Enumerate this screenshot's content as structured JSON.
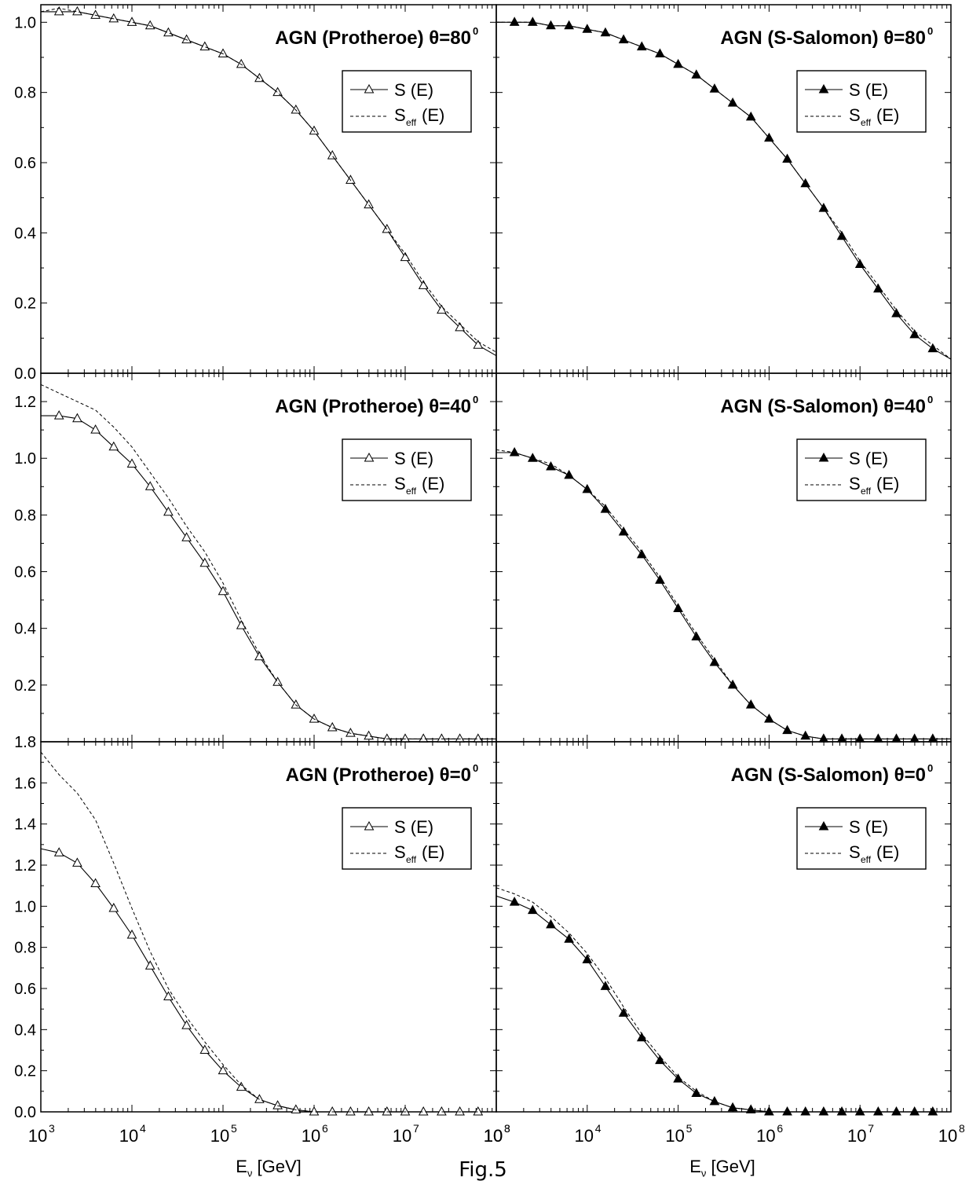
{
  "figure": {
    "caption": "Fig.5",
    "x_axis": {
      "label_main": "E",
      "label_sub": "ν",
      "label_unit": "[GeV]",
      "tick_labels": [
        "10",
        "10",
        "10",
        "10",
        "10",
        "10"
      ],
      "tick_exponents": [
        "3",
        "4",
        "5",
        "6",
        "7",
        "8"
      ],
      "scale": "log",
      "range": [
        1000,
        100000000
      ]
    },
    "legend": {
      "s_label": "S (E)",
      "seff_label_main": "S",
      "seff_label_sub": "eff",
      "seff_label_tail": "(E)"
    }
  },
  "chart_data": [
    {
      "type": "line",
      "id": "top-left",
      "title": "AGN (Protheroe)  θ=80",
      "title_sup": "0",
      "marker": "open-triangle",
      "xscale": "log",
      "xlim": [
        1000,
        100000000
      ],
      "ylim": [
        0.0,
        1.05
      ],
      "y_ticks": [
        0.0,
        0.2,
        0.4,
        0.6,
        0.8,
        1.0
      ],
      "y_tick_labels": [
        "0.0",
        "0.2",
        "0.4",
        "0.6",
        "0.8",
        "1.0"
      ],
      "legend_position": "top-right",
      "series": [
        {
          "name": "S (E)",
          "style": "solid-markers",
          "x": [
            1000,
            1585,
            2512,
            3981,
            6310,
            10000,
            15850,
            25120,
            39810,
            63100,
            100000,
            158500,
            251200,
            398100,
            631000,
            1000000,
            1585000,
            2512000,
            3981000,
            6310000,
            10000000,
            15850000,
            25120000,
            39810000,
            63100000,
            100000000
          ],
          "y": [
            1.03,
            1.03,
            1.03,
            1.02,
            1.01,
            1.0,
            0.99,
            0.97,
            0.95,
            0.93,
            0.91,
            0.88,
            0.84,
            0.8,
            0.75,
            0.69,
            0.62,
            0.55,
            0.48,
            0.41,
            0.33,
            0.25,
            0.18,
            0.13,
            0.08,
            0.05
          ]
        },
        {
          "name": "Seff(E)",
          "style": "dashed",
          "x": [
            1000,
            1585,
            2512,
            3981,
            6310,
            10000,
            15850,
            25120,
            39810,
            63100,
            100000,
            158500,
            251200,
            398100,
            631000,
            1000000,
            1585000,
            2512000,
            3981000,
            6310000,
            10000000,
            15850000,
            25120000,
            39810000,
            63100000,
            100000000
          ],
          "y": [
            1.03,
            1.04,
            1.03,
            1.02,
            1.01,
            1.0,
            0.99,
            0.97,
            0.95,
            0.93,
            0.91,
            0.88,
            0.84,
            0.8,
            0.75,
            0.69,
            0.62,
            0.55,
            0.48,
            0.41,
            0.34,
            0.26,
            0.19,
            0.14,
            0.09,
            0.06
          ]
        }
      ]
    },
    {
      "type": "line",
      "id": "top-right",
      "title": "AGN (S-Salomon)  θ=80",
      "title_sup": "0",
      "marker": "filled-triangle",
      "xscale": "log",
      "xlim": [
        1000,
        100000000
      ],
      "ylim": [
        0.0,
        1.05
      ],
      "y_ticks": [
        0.0,
        0.2,
        0.4,
        0.6,
        0.8,
        1.0
      ],
      "y_tick_labels": [],
      "legend_position": "top-right",
      "series": [
        {
          "name": "S (E)",
          "style": "solid-markers",
          "x": [
            1000,
            1585,
            2512,
            3981,
            6310,
            10000,
            15850,
            25120,
            39810,
            63100,
            100000,
            158500,
            251200,
            398100,
            631000,
            1000000,
            1585000,
            2512000,
            3981000,
            6310000,
            10000000,
            15850000,
            25120000,
            39810000,
            63100000,
            100000000
          ],
          "y": [
            1.0,
            1.0,
            1.0,
            0.99,
            0.99,
            0.98,
            0.97,
            0.95,
            0.93,
            0.91,
            0.88,
            0.85,
            0.81,
            0.77,
            0.73,
            0.67,
            0.61,
            0.54,
            0.47,
            0.39,
            0.31,
            0.24,
            0.17,
            0.11,
            0.07,
            0.04
          ]
        },
        {
          "name": "Seff(E)",
          "style": "dashed",
          "x": [
            1000,
            1585,
            2512,
            3981,
            6310,
            10000,
            15850,
            25120,
            39810,
            63100,
            100000,
            158500,
            251200,
            398100,
            631000,
            1000000,
            1585000,
            2512000,
            3981000,
            6310000,
            10000000,
            15850000,
            25120000,
            39810000,
            63100000,
            100000000
          ],
          "y": [
            1.0,
            1.0,
            1.0,
            0.99,
            0.99,
            0.98,
            0.97,
            0.95,
            0.93,
            0.91,
            0.88,
            0.85,
            0.81,
            0.77,
            0.73,
            0.67,
            0.61,
            0.54,
            0.47,
            0.4,
            0.32,
            0.25,
            0.18,
            0.12,
            0.08,
            0.04
          ]
        }
      ]
    },
    {
      "type": "line",
      "id": "middle-left",
      "title": "AGN (Protheroe)  θ=40",
      "title_sup": "0",
      "marker": "open-triangle",
      "xscale": "log",
      "xlim": [
        1000,
        100000000
      ],
      "ylim": [
        0.0,
        1.3
      ],
      "y_ticks": [
        0.0,
        0.2,
        0.4,
        0.6,
        0.8,
        1.0,
        1.2
      ],
      "y_tick_labels": [
        "",
        "0.2",
        "0.4",
        "0.6",
        "0.8",
        "1.0",
        "1.2"
      ],
      "legend_position": "top-right",
      "series": [
        {
          "name": "S (E)",
          "style": "solid-markers",
          "x": [
            1000,
            1585,
            2512,
            3981,
            6310,
            10000,
            15850,
            25120,
            39810,
            63100,
            100000,
            158500,
            251200,
            398100,
            631000,
            1000000,
            1585000,
            2512000,
            3981000,
            6310000,
            10000000,
            15850000,
            25120000,
            39810000,
            63100000,
            100000000
          ],
          "y": [
            1.15,
            1.15,
            1.14,
            1.1,
            1.04,
            0.98,
            0.9,
            0.81,
            0.72,
            0.63,
            0.53,
            0.41,
            0.3,
            0.21,
            0.13,
            0.08,
            0.05,
            0.03,
            0.02,
            0.01,
            0.01,
            0.01,
            0.01,
            0.01,
            0.01,
            0.01
          ]
        },
        {
          "name": "Seff(E)",
          "style": "dashed",
          "x": [
            1000,
            1585,
            2512,
            3981,
            6310,
            10000,
            15850,
            25120,
            39810,
            63100,
            100000,
            158500,
            251200,
            398100,
            631000,
            1000000,
            1585000,
            2512000,
            3981000,
            6310000,
            10000000,
            15850000,
            25120000,
            39810000,
            63100000,
            100000000
          ],
          "y": [
            1.26,
            1.23,
            1.2,
            1.17,
            1.11,
            1.04,
            0.95,
            0.86,
            0.76,
            0.67,
            0.56,
            0.43,
            0.31,
            0.21,
            0.13,
            0.08,
            0.05,
            0.03,
            0.02,
            0.01,
            0.01,
            0.01,
            0.01,
            0.01,
            0.01,
            0.01
          ]
        }
      ]
    },
    {
      "type": "line",
      "id": "middle-right",
      "title": "AGN (S-Salomon)  θ=40",
      "title_sup": "0",
      "marker": "filled-triangle",
      "xscale": "log",
      "xlim": [
        1000,
        100000000
      ],
      "ylim": [
        0.0,
        1.3
      ],
      "y_ticks": [
        0.0,
        0.2,
        0.4,
        0.6,
        0.8,
        1.0,
        1.2
      ],
      "y_tick_labels": [],
      "legend_position": "top-right",
      "series": [
        {
          "name": "S (E)",
          "style": "solid-markers",
          "x": [
            1000,
            1585,
            2512,
            3981,
            6310,
            10000,
            15850,
            25120,
            39810,
            63100,
            100000,
            158500,
            251200,
            398100,
            631000,
            1000000,
            1585000,
            2512000,
            3981000,
            6310000,
            10000000,
            15850000,
            25120000,
            39810000,
            63100000,
            100000000
          ],
          "y": [
            1.02,
            1.02,
            1.0,
            0.97,
            0.94,
            0.89,
            0.82,
            0.74,
            0.66,
            0.57,
            0.47,
            0.37,
            0.28,
            0.2,
            0.13,
            0.08,
            0.04,
            0.02,
            0.01,
            0.01,
            0.01,
            0.01,
            0.01,
            0.01,
            0.01,
            0.01
          ]
        },
        {
          "name": "Seff(E)",
          "style": "dashed",
          "x": [
            1000,
            1585,
            2512,
            3981,
            6310,
            10000,
            15850,
            25120,
            39810,
            63100,
            100000,
            158500,
            251200,
            398100,
            631000,
            1000000,
            1585000,
            2512000,
            3981000,
            6310000,
            10000000,
            15850000,
            25120000,
            39810000,
            63100000,
            100000000
          ],
          "y": [
            1.03,
            1.02,
            1.0,
            0.98,
            0.94,
            0.89,
            0.83,
            0.75,
            0.67,
            0.58,
            0.48,
            0.38,
            0.29,
            0.2,
            0.13,
            0.08,
            0.04,
            0.02,
            0.01,
            0.01,
            0.01,
            0.01,
            0.01,
            0.01,
            0.01,
            0.01
          ]
        }
      ]
    },
    {
      "type": "line",
      "id": "bottom-left",
      "title": "AGN (Protheroe)  θ=0",
      "title_sup": "0",
      "marker": "open-triangle",
      "xscale": "log",
      "xlim": [
        1000,
        100000000
      ],
      "ylim": [
        0.0,
        1.8
      ],
      "y_ticks": [
        0.0,
        0.2,
        0.4,
        0.6,
        0.8,
        1.0,
        1.2,
        1.4,
        1.6,
        1.8
      ],
      "y_tick_labels": [
        "0.0",
        "0.2",
        "0.4",
        "0.6",
        "0.8",
        "1.0",
        "1.2",
        "1.4",
        "1.6",
        "1.8"
      ],
      "legend_position": "top-right",
      "series": [
        {
          "name": "S (E)",
          "style": "solid-markers",
          "x": [
            1000,
            1585,
            2512,
            3981,
            6310,
            10000,
            15850,
            25120,
            39810,
            63100,
            100000,
            158500,
            251200,
            398100,
            631000,
            1000000,
            1585000,
            2512000,
            3981000,
            6310000,
            10000000,
            15850000,
            25120000,
            39810000,
            63100000,
            100000000
          ],
          "y": [
            1.28,
            1.26,
            1.21,
            1.11,
            0.99,
            0.86,
            0.71,
            0.56,
            0.42,
            0.3,
            0.2,
            0.12,
            0.06,
            0.03,
            0.01,
            0.0,
            0.0,
            0.0,
            0.0,
            0.0,
            0.0,
            0.0,
            0.0,
            0.0,
            0.0,
            0.0
          ]
        },
        {
          "name": "Seff(E)",
          "style": "dashed",
          "x": [
            1000,
            1585,
            2512,
            3981,
            6310,
            10000,
            15850,
            25120,
            39810,
            63100,
            100000,
            158500,
            251200,
            398100,
            631000,
            1000000,
            1585000,
            2512000,
            3981000,
            6310000,
            10000000,
            15850000,
            25120000,
            39810000,
            63100000,
            100000000
          ],
          "y": [
            1.75,
            1.64,
            1.55,
            1.42,
            1.21,
            0.99,
            0.78,
            0.6,
            0.46,
            0.34,
            0.23,
            0.13,
            0.06,
            0.03,
            0.01,
            0.0,
            0.0,
            0.0,
            0.0,
            0.0,
            0.0,
            0.0,
            0.0,
            0.0,
            0.0,
            0.0
          ]
        }
      ]
    },
    {
      "type": "line",
      "id": "bottom-right",
      "title": "AGN (S-Salomon)  θ=0",
      "title_sup": "0",
      "marker": "filled-triangle",
      "xscale": "log",
      "xlim": [
        1000,
        100000000
      ],
      "ylim": [
        0.0,
        1.8
      ],
      "y_ticks": [
        0.0,
        0.2,
        0.4,
        0.6,
        0.8,
        1.0,
        1.2,
        1.4,
        1.6,
        1.8
      ],
      "y_tick_labels": [],
      "legend_position": "top-right",
      "series": [
        {
          "name": "S (E)",
          "style": "solid-markers",
          "x": [
            1000,
            1585,
            2512,
            3981,
            6310,
            10000,
            15850,
            25120,
            39810,
            63100,
            100000,
            158500,
            251200,
            398100,
            631000,
            1000000,
            1585000,
            2512000,
            3981000,
            6310000,
            10000000,
            15850000,
            25120000,
            39810000,
            63100000,
            100000000
          ],
          "y": [
            1.05,
            1.02,
            0.98,
            0.91,
            0.84,
            0.74,
            0.61,
            0.48,
            0.36,
            0.25,
            0.16,
            0.09,
            0.05,
            0.02,
            0.01,
            0.0,
            0.0,
            0.0,
            0.0,
            0.0,
            0.0,
            0.0,
            0.0,
            0.0,
            0.0,
            0.0
          ]
        },
        {
          "name": "Seff(E)",
          "style": "dashed",
          "x": [
            1000,
            1585,
            2512,
            3981,
            6310,
            10000,
            15850,
            25120,
            39810,
            63100,
            100000,
            158500,
            251200,
            398100,
            631000,
            1000000,
            1585000,
            2512000,
            3981000,
            6310000,
            10000000,
            15850000,
            25120000,
            39810000,
            63100000,
            100000000
          ],
          "y": [
            1.09,
            1.06,
            1.02,
            0.95,
            0.87,
            0.77,
            0.65,
            0.51,
            0.38,
            0.27,
            0.17,
            0.1,
            0.05,
            0.02,
            0.01,
            0.0,
            0.0,
            0.0,
            0.0,
            0.0,
            0.0,
            0.0,
            0.0,
            0.0,
            0.0,
            0.0
          ]
        }
      ]
    }
  ]
}
